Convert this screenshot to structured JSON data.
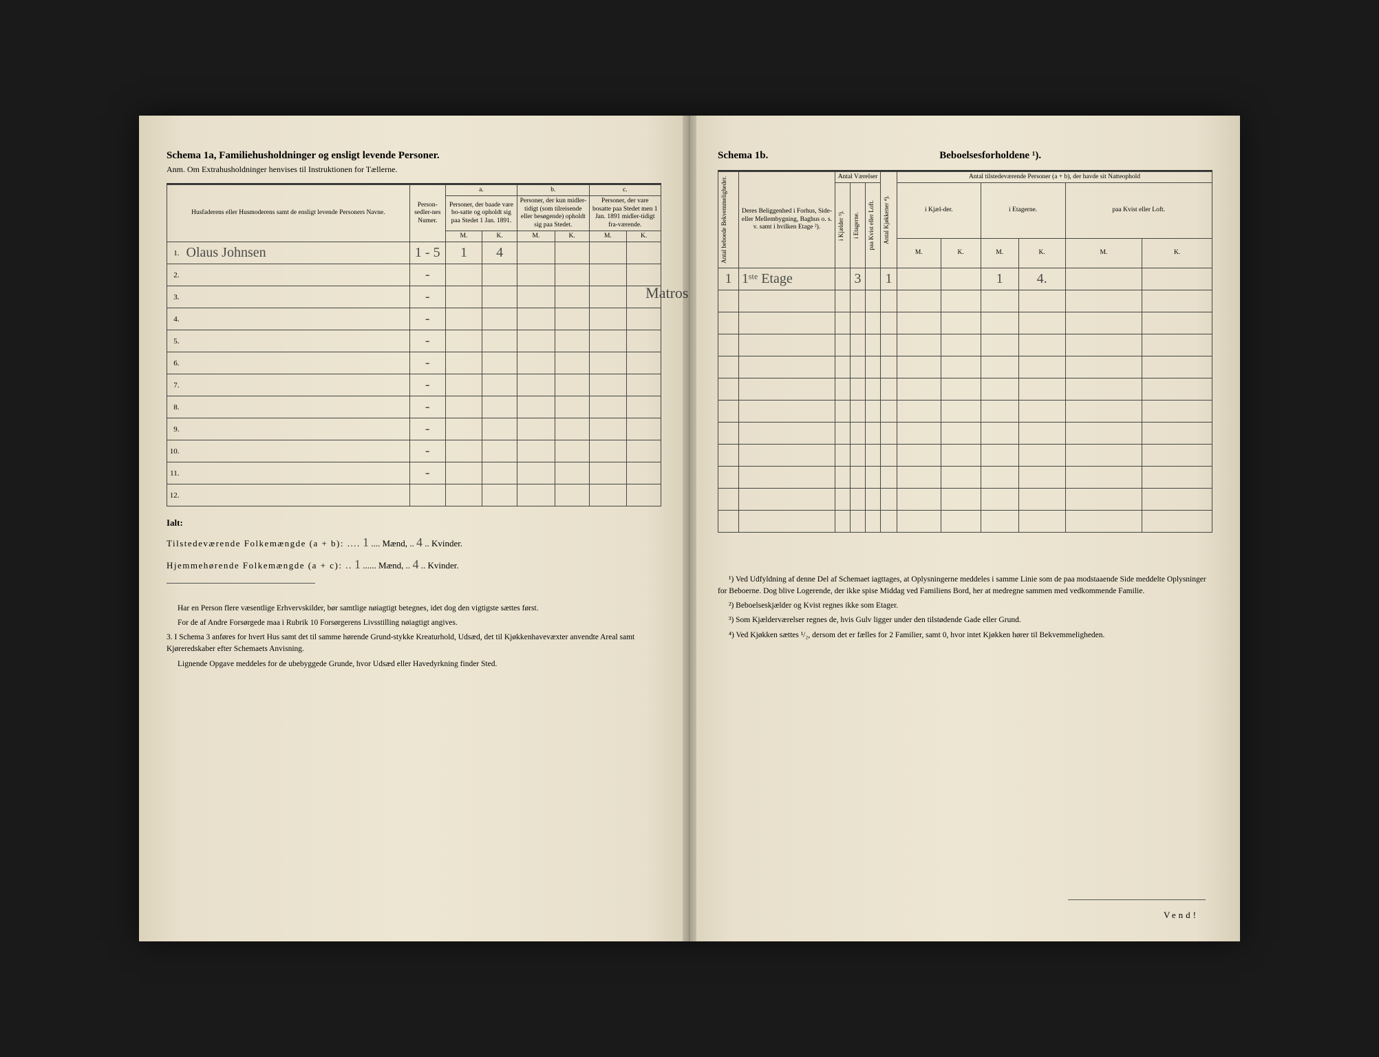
{
  "left": {
    "title": "Schema 1a,  Familiehusholdninger og ensligt levende Personer.",
    "subtitle": "Anm. Om Extrahusholdninger henvises til Instruktionen for Tællerne.",
    "headers": {
      "col_name": "Husfaderens eller Husmoderens samt de ensligt levende Personers Navne.",
      "col_numer": "Person-sedler-nes Numer.",
      "group_a": "a.",
      "group_a_text": "Personer, der baade vare bo-satte og opholdt sig paa Stedet 1 Jan. 1891.",
      "group_b": "b.",
      "group_b_text": "Personer, der kun midler-tidigt (som tilreisende eller besøgende) opholdt sig paa Stedet.",
      "group_c": "c.",
      "group_c_text": "Personer, der vare bosatte paa Stedet men 1 Jan. 1891 midler-tidigt fra-værende.",
      "m": "M.",
      "k": "K."
    },
    "rows": [
      {
        "n": "1.",
        "name": "Olaus Johnsen",
        "numer": "1 - 5",
        "aM": "1",
        "aK": "4",
        "bM": "",
        "bK": "",
        "cM": "",
        "cK": ""
      },
      {
        "n": "2.",
        "name": "",
        "numer": "-",
        "aM": "",
        "aK": "",
        "bM": "",
        "bK": "",
        "cM": "",
        "cK": ""
      },
      {
        "n": "3.",
        "name": "",
        "numer": "-",
        "aM": "",
        "aK": "",
        "bM": "",
        "bK": "",
        "cM": "",
        "cK": ""
      },
      {
        "n": "4.",
        "name": "",
        "numer": "-",
        "aM": "",
        "aK": "",
        "bM": "",
        "bK": "",
        "cM": "",
        "cK": ""
      },
      {
        "n": "5.",
        "name": "",
        "numer": "-",
        "aM": "",
        "aK": "",
        "bM": "",
        "bK": "",
        "cM": "",
        "cK": ""
      },
      {
        "n": "6.",
        "name": "",
        "numer": "-",
        "aM": "",
        "aK": "",
        "bM": "",
        "bK": "",
        "cM": "",
        "cK": ""
      },
      {
        "n": "7.",
        "name": "",
        "numer": "-",
        "aM": "",
        "aK": "",
        "bM": "",
        "bK": "",
        "cM": "",
        "cK": ""
      },
      {
        "n": "8.",
        "name": "",
        "numer": "-",
        "aM": "",
        "aK": "",
        "bM": "",
        "bK": "",
        "cM": "",
        "cK": ""
      },
      {
        "n": "9.",
        "name": "",
        "numer": "-",
        "aM": "",
        "aK": "",
        "bM": "",
        "bK": "",
        "cM": "",
        "cK": ""
      },
      {
        "n": "10.",
        "name": "",
        "numer": "-",
        "aM": "",
        "aK": "",
        "bM": "",
        "bK": "",
        "cM": "",
        "cK": ""
      },
      {
        "n": "11.",
        "name": "",
        "numer": "-",
        "aM": "",
        "aK": "",
        "bM": "",
        "bK": "",
        "cM": "",
        "cK": ""
      },
      {
        "n": "12.",
        "name": "",
        "numer": "",
        "aM": "",
        "aK": "",
        "bM": "",
        "bK": "",
        "cM": "",
        "cK": ""
      }
    ],
    "margin_note": "Matros.",
    "totals": {
      "ialt": "Ialt:",
      "line1_a": "Tilstedeværende Folkemængde (a + b): ....",
      "line1_m": "1",
      "line1_mid": ".... Mænd, ..",
      "line1_k": "4",
      "line1_end": ".. Kvinder.",
      "line2_a": "Hjemmehørende Folkemængde (a + c): ..",
      "line2_m": "1",
      "line2_mid": "...... Mænd, ..",
      "line2_k": "4",
      "line2_end": ".. Kvinder."
    },
    "footnotes": {
      "p1": "Har en Person flere væsentlige Erhvervskilder, bør samtlige nøiagtigt betegnes, idet dog den vigtigste sættes først.",
      "p2": "For de af Andre Forsørgede maa i Rubrik 10 Forsørgerens Livsstilling nøiagtigt angives.",
      "p3_num": "3.",
      "p3": "I Schema 3 anføres for hvert Hus samt det til samme hørende Grund-stykke Kreaturhold, Udsæd, det til Kjøkkenhavevæxter anvendte Areal samt Kjøreredskaber efter Schemaets Anvisning.",
      "p4": "Lignende Opgave meddeles for de ubebyggede Grunde, hvor Udsæd eller Havedyrkning finder Sted."
    }
  },
  "right": {
    "title_left": "Schema 1b.",
    "title_right": "Beboelsesforholdene ¹).",
    "headers": {
      "col1": "Antal beboede Bekvemmeligheder.",
      "col2": "Deres Beliggenhed i Forhus, Side- eller Mellembygning, Baghus o. s. v. samt i hvilken Etage ²).",
      "col_vaer": "Antal Værelser",
      "col_v1": "i Kjælder ³).",
      "col_v2": "i Etagerne.",
      "col_v3": "paa Kvist eller Loft.",
      "col_kj": "Antal Kjøkkener ⁴).",
      "col_natt": "Antal tilstedeværende Personer (a + b), der havde sit Natteophold",
      "n1": "i Kjæl-der.",
      "n2": "i Etagerne.",
      "n3": "paa Kvist eller Loft.",
      "m": "M.",
      "k": "K."
    },
    "rows": [
      {
        "c1": "1",
        "c2": "1ˢᵗᵉ Etage",
        "v1": "",
        "v2": "3",
        "v3": "",
        "kj": "1",
        "n1m": "",
        "n1k": "",
        "n2m": "1",
        "n2k": "4.",
        "n3m": "",
        "n3k": ""
      },
      {
        "c1": "",
        "c2": "",
        "v1": "",
        "v2": "",
        "v3": "",
        "kj": "",
        "n1m": "",
        "n1k": "",
        "n2m": "",
        "n2k": "",
        "n3m": "",
        "n3k": ""
      },
      {
        "c1": "",
        "c2": "",
        "v1": "",
        "v2": "",
        "v3": "",
        "kj": "",
        "n1m": "",
        "n1k": "",
        "n2m": "",
        "n2k": "",
        "n3m": "",
        "n3k": ""
      },
      {
        "c1": "",
        "c2": "",
        "v1": "",
        "v2": "",
        "v3": "",
        "kj": "",
        "n1m": "",
        "n1k": "",
        "n2m": "",
        "n2k": "",
        "n3m": "",
        "n3k": ""
      },
      {
        "c1": "",
        "c2": "",
        "v1": "",
        "v2": "",
        "v3": "",
        "kj": "",
        "n1m": "",
        "n1k": "",
        "n2m": "",
        "n2k": "",
        "n3m": "",
        "n3k": ""
      },
      {
        "c1": "",
        "c2": "",
        "v1": "",
        "v2": "",
        "v3": "",
        "kj": "",
        "n1m": "",
        "n1k": "",
        "n2m": "",
        "n2k": "",
        "n3m": "",
        "n3k": ""
      },
      {
        "c1": "",
        "c2": "",
        "v1": "",
        "v2": "",
        "v3": "",
        "kj": "",
        "n1m": "",
        "n1k": "",
        "n2m": "",
        "n2k": "",
        "n3m": "",
        "n3k": ""
      },
      {
        "c1": "",
        "c2": "",
        "v1": "",
        "v2": "",
        "v3": "",
        "kj": "",
        "n1m": "",
        "n1k": "",
        "n2m": "",
        "n2k": "",
        "n3m": "",
        "n3k": ""
      },
      {
        "c1": "",
        "c2": "",
        "v1": "",
        "v2": "",
        "v3": "",
        "kj": "",
        "n1m": "",
        "n1k": "",
        "n2m": "",
        "n2k": "",
        "n3m": "",
        "n3k": ""
      },
      {
        "c1": "",
        "c2": "",
        "v1": "",
        "v2": "",
        "v3": "",
        "kj": "",
        "n1m": "",
        "n1k": "",
        "n2m": "",
        "n2k": "",
        "n3m": "",
        "n3k": ""
      },
      {
        "c1": "",
        "c2": "",
        "v1": "",
        "v2": "",
        "v3": "",
        "kj": "",
        "n1m": "",
        "n1k": "",
        "n2m": "",
        "n2k": "",
        "n3m": "",
        "n3k": ""
      },
      {
        "c1": "",
        "c2": "",
        "v1": "",
        "v2": "",
        "v3": "",
        "kj": "",
        "n1m": "",
        "n1k": "",
        "n2m": "",
        "n2k": "",
        "n3m": "",
        "n3k": ""
      }
    ],
    "footnotes": {
      "f1": "¹) Ved Udfyldning af denne Del af Schemaet iagttages, at Oplysningerne meddeles i samme Linie som de paa modstaaende Side meddelte Oplysninger for Beboerne. Dog blive Logerende, der ikke spise Middag ved Familiens Bord, her at medregne sammen med vedkommende Familie.",
      "f2": "²) Beboelseskjælder og Kvist regnes ikke som Etager.",
      "f3": "³) Som Kjælderværelser regnes de, hvis Gulv ligger under den tilstødende Gade eller Grund.",
      "f4": "⁴) Ved Kjøkken sættes ¹/₂, dersom det er fælles for 2 Familier, samt 0, hvor intet Kjøkken hører til Bekvemmeligheden."
    },
    "vend": "Vend!"
  },
  "colors": {
    "paper": "#e8e0cc",
    "ink": "#333333",
    "handwriting": "#4a4a48",
    "background": "#1a1a1a"
  }
}
